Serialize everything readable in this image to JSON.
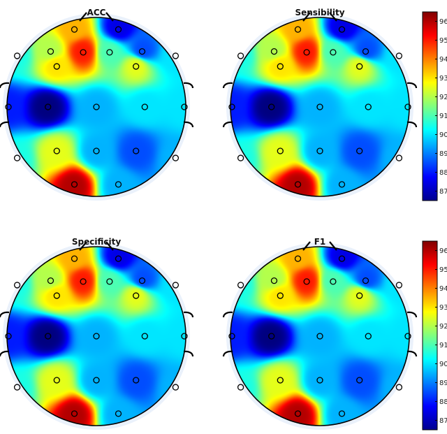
{
  "chart_data": {
    "type": "heatmap",
    "description_kind": "eeg-topographic-map",
    "colormap": "jet",
    "panels": [
      {
        "title": "ACC"
      },
      {
        "title": "Sensibility"
      },
      {
        "title": "Specificity"
      },
      {
        "title": "F1"
      }
    ],
    "colorbar": {
      "range": [
        86.5,
        96.5
      ],
      "ticks": [
        "96",
        "95",
        "94",
        "93",
        "92",
        "91",
        "90",
        "89",
        "88",
        "87"
      ]
    },
    "electrodes": [
      {
        "x": -0.25,
        "y": 0.88,
        "v": 93.5
      },
      {
        "x": 0.25,
        "y": 0.88,
        "v": 87.5
      },
      {
        "x": -0.9,
        "y": 0.58,
        "v": 90.5
      },
      {
        "x": -0.52,
        "y": 0.63,
        "v": 92.0
      },
      {
        "x": -0.45,
        "y": 0.46,
        "v": 93.0
      },
      {
        "x": -0.15,
        "y": 0.62,
        "v": 95.0
      },
      {
        "x": 0.15,
        "y": 0.62,
        "v": 91.0
      },
      {
        "x": 0.52,
        "y": 0.63,
        "v": 88.5
      },
      {
        "x": 0.45,
        "y": 0.46,
        "v": 92.5
      },
      {
        "x": 0.9,
        "y": 0.58,
        "v": 90.0
      },
      {
        "x": -1.0,
        "y": 0.0,
        "v": 88.0
      },
      {
        "x": -0.55,
        "y": 0.0,
        "v": 86.5
      },
      {
        "x": 0.0,
        "y": 0.0,
        "v": 89.5
      },
      {
        "x": 0.55,
        "y": 0.0,
        "v": 90.0
      },
      {
        "x": 1.0,
        "y": 0.0,
        "v": 90.0
      },
      {
        "x": -0.9,
        "y": -0.58,
        "v": 90.5
      },
      {
        "x": -0.45,
        "y": -0.5,
        "v": 92.5
      },
      {
        "x": 0.0,
        "y": -0.5,
        "v": 89.5
      },
      {
        "x": 0.45,
        "y": -0.5,
        "v": 88.5
      },
      {
        "x": 0.9,
        "y": -0.58,
        "v": 89.5
      },
      {
        "x": -0.25,
        "y": -0.88,
        "v": 96.0
      },
      {
        "x": 0.25,
        "y": -0.88,
        "v": 89.5
      }
    ]
  }
}
